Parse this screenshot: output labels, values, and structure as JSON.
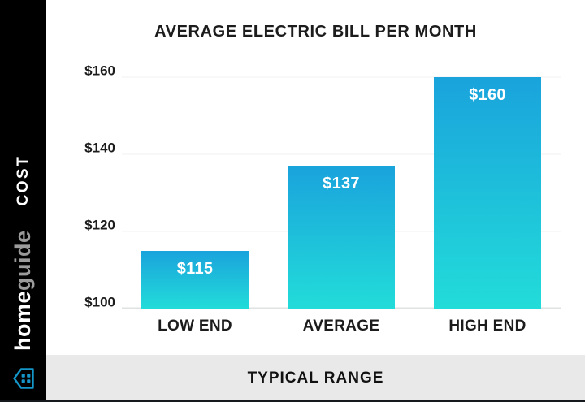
{
  "sidebar": {
    "axis_label": "COST",
    "brand_bold": "home",
    "brand_light": "guide",
    "logo_color": "#1496c8"
  },
  "chart_data": {
    "type": "bar",
    "title": "AVERAGE ELECTRIC BILL PER MONTH",
    "categories": [
      "LOW END",
      "AVERAGE",
      "HIGH END"
    ],
    "values": [
      115,
      137,
      160
    ],
    "value_labels": [
      "$115",
      "$137",
      "$160"
    ],
    "ylim": [
      100,
      160
    ],
    "yticks": [
      100,
      120,
      140,
      160
    ],
    "ytick_labels": [
      "$100",
      "$120",
      "$140",
      "$160"
    ],
    "grid": "horizontal",
    "legend": "none",
    "bar_gradient_top": "#1aa3dc",
    "bar_gradient_bottom": "#22dcd9"
  },
  "footer": {
    "label": "TYPICAL RANGE"
  }
}
